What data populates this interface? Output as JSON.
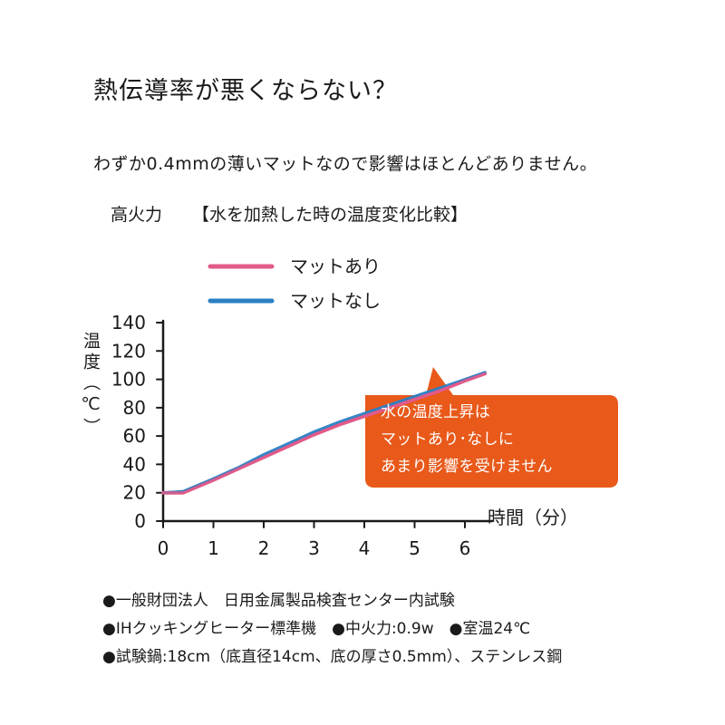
{
  "heading": "熱伝導率が悪くならない？",
  "subtitle": "わずか0.4mmの薄いマットなので影響はほとんどありません。",
  "chart_data": {
    "type": "line",
    "title": "【水を加熱した時の温度変化比較】",
    "corner_label": "高火力",
    "ylabel": "温度（℃）",
    "xlabel": "時間（分）",
    "xlim": [
      0,
      6.5
    ],
    "ylim": [
      0,
      140
    ],
    "x_ticks": [
      "0",
      "1",
      "2",
      "3",
      "4",
      "5",
      "6"
    ],
    "y_ticks": [
      "0",
      "20",
      "40",
      "60",
      "80",
      "100",
      "120",
      "140"
    ],
    "legend_position": "top-left",
    "grid": false,
    "series": [
      {
        "name": "マットあり",
        "color": "#e25b8a",
        "x": [
          0,
          0.4,
          1,
          1.5,
          2,
          2.5,
          3,
          3.5,
          4,
          4.5,
          5,
          5.5,
          6,
          6.4
        ],
        "y": [
          20,
          20,
          29,
          37,
          45,
          53,
          61,
          68,
          74,
          80,
          86,
          92,
          99,
          104
        ]
      },
      {
        "name": "マットなし",
        "color": "#2a7fc4",
        "x": [
          0,
          0.4,
          1,
          1.5,
          2,
          2.5,
          3,
          3.5,
          4,
          4.5,
          5,
          5.5,
          6,
          6.4
        ],
        "y": [
          20,
          21,
          30,
          38,
          47,
          55,
          63,
          70,
          76,
          82,
          88,
          94,
          100,
          105
        ]
      }
    ],
    "annotation": [
      "水の温度上昇は",
      "マットあり･なしに",
      "あまり影響を受けません"
    ],
    "annotation_color": "#e8591a"
  },
  "footnotes": [
    "●一般財団法人　日用金属製品検査センター内試験",
    "●IHクッキングヒーター標準機　●中火力:0.9w　●室温24℃",
    "●試験鍋:18cm（底直径14cm、底の厚さ0.5mm）、ステンレス鋼"
  ]
}
